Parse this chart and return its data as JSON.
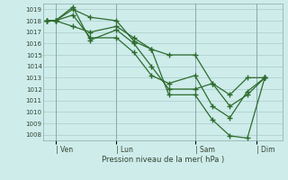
{
  "background_color": "#ceecea",
  "grid_color": "#aacccc",
  "line_color": "#2d6b2d",
  "marker_color": "#2d6b2d",
  "xlabel": "Pression niveau de la mer( hPa )",
  "ylim": [
    1007.5,
    1019.5
  ],
  "yticks": [
    1008,
    1009,
    1010,
    1011,
    1012,
    1013,
    1014,
    1015,
    1016,
    1017,
    1018,
    1019
  ],
  "xtick_labels": [
    "| Ven",
    "| Lun",
    "| Sam",
    "| Dim"
  ],
  "xtick_positions": [
    0.5,
    4.0,
    8.5,
    12.0
  ],
  "xlim": [
    -0.2,
    13.5
  ],
  "series1_x": [
    0,
    0.5,
    1.5,
    2.5,
    4.0,
    5.0,
    6.0,
    7.0,
    8.5,
    9.5,
    10.5,
    11.5,
    12.5
  ],
  "series1_y": [
    1018.0,
    1018.0,
    1019.0,
    1018.3,
    1018.0,
    1016.2,
    1015.5,
    1011.5,
    1011.5,
    1009.3,
    1007.9,
    1007.7,
    1013.0
  ],
  "series2_x": [
    0,
    0.5,
    1.5,
    2.5,
    4.0,
    5.0,
    6.0,
    7.0,
    8.5,
    9.5,
    10.5,
    11.5,
    12.5
  ],
  "series2_y": [
    1018.0,
    1018.0,
    1019.2,
    1016.3,
    1017.2,
    1016.0,
    1014.0,
    1012.0,
    1012.0,
    1012.5,
    1010.5,
    1011.5,
    1013.0
  ],
  "series3_x": [
    0,
    0.5,
    1.5,
    2.5,
    4.0,
    5.0,
    6.0,
    7.0,
    8.5,
    9.5,
    10.5,
    11.5,
    12.5
  ],
  "series3_y": [
    1018.0,
    1018.0,
    1018.5,
    1016.5,
    1016.5,
    1015.2,
    1013.2,
    1012.5,
    1013.2,
    1010.5,
    1009.5,
    1011.8,
    1013.0
  ],
  "series4_x": [
    0,
    0.5,
    1.5,
    2.5,
    4.0,
    5.0,
    6.0,
    7.0,
    8.5,
    9.5,
    10.5,
    11.5,
    12.5
  ],
  "series4_y": [
    1018.0,
    1018.0,
    1017.5,
    1017.0,
    1017.5,
    1016.5,
    1015.5,
    1015.0,
    1015.0,
    1012.5,
    1011.5,
    1013.0,
    1013.0
  ]
}
